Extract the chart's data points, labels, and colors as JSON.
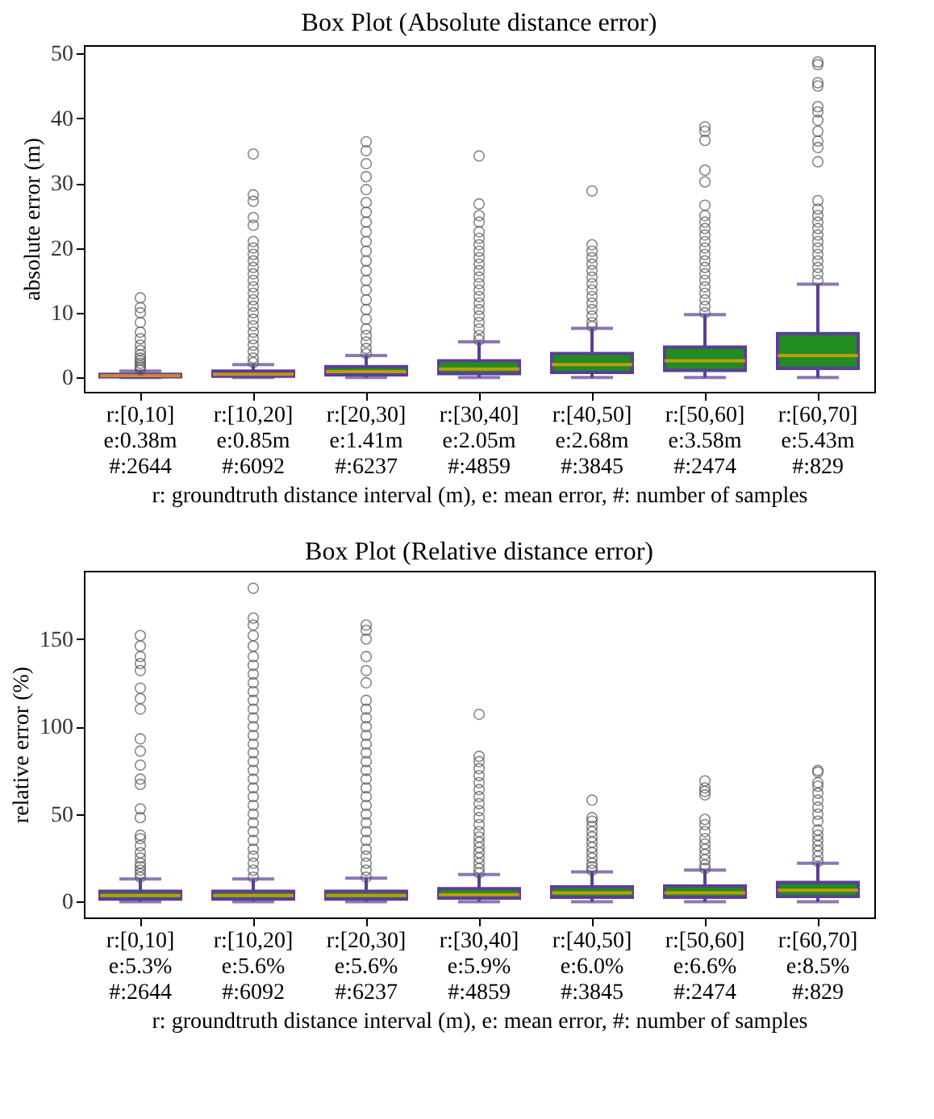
{
  "chart_data": [
    {
      "type": "box",
      "title": "Box Plot (Absolute distance error)",
      "ylabel": "absolute error (m)",
      "xlabel": "r: groundtruth distance interval (m), e: mean error, #: number of samples",
      "categories": [
        "r:[0,10]\ne:0.38m\n#:2644",
        "r:[10,20]\ne:0.85m\n#:6092",
        "r:[20,30]\ne:1.41m\n#:6237",
        "r:[30,40]\ne:2.05m\n#:4859",
        "r:[40,50]\ne:2.68m\n#:3845",
        "r:[50,60]\ne:3.58m\n#:2474",
        "r:[60,70]\ne:5.43m\n#:829"
      ],
      "color": "#228b22",
      "ylim": [
        -2.2,
        51.3
      ],
      "yticks": [
        0,
        10,
        20,
        30,
        40,
        50
      ],
      "boxes": [
        {
          "low": 0,
          "q1": 0.1,
          "median": 0.3,
          "q3": 0.5,
          "high": 1.0,
          "outliers": [
            1.2,
            1.5,
            1.8,
            2.2,
            2.6,
            3.0,
            3.5,
            4.2,
            5.0,
            6.0,
            7.0,
            8.5,
            10.0,
            10.8,
            12.3
          ]
        },
        {
          "low": 0,
          "q1": 0.2,
          "median": 0.5,
          "q3": 1.0,
          "high": 2.0,
          "outliers": [
            2.3,
            3,
            4,
            5,
            6,
            7,
            8,
            9,
            10,
            11,
            12,
            13,
            14,
            15,
            16,
            17,
            18,
            19,
            20,
            21,
            23.5,
            24.7,
            27.2,
            28.2,
            34.5
          ]
        },
        {
          "low": 0,
          "q1": 0.4,
          "median": 0.9,
          "q3": 1.7,
          "high": 3.4,
          "outliers": [
            3.7,
            4.5,
            5.5,
            6.5,
            7.5,
            9,
            10.5,
            12,
            13.5,
            15,
            16.5,
            18,
            19.5,
            21,
            22.5,
            24,
            25.5,
            27,
            29,
            31,
            33,
            35,
            36.4
          ]
        },
        {
          "low": 0,
          "q1": 0.6,
          "median": 1.3,
          "q3": 2.6,
          "high": 5.5,
          "outliers": [
            5.8,
            6.5,
            7.5,
            8.5,
            9.5,
            10.5,
            11.5,
            12.5,
            13.5,
            14.5,
            15.5,
            16.5,
            17.5,
            18.5,
            19.5,
            20.5,
            21.5,
            22.5,
            24,
            25,
            26.8,
            34.2
          ]
        },
        {
          "low": 0,
          "q1": 0.8,
          "median": 2.0,
          "q3": 3.7,
          "high": 7.6,
          "outliers": [
            7.9,
            8.5,
            9.5,
            10.5,
            11.5,
            12.5,
            13.5,
            14.5,
            15.5,
            16.5,
            17.5,
            18.5,
            19.5,
            20.5,
            28.8
          ]
        },
        {
          "low": 0,
          "q1": 1.1,
          "median": 2.6,
          "q3": 4.7,
          "high": 9.7,
          "outliers": [
            10,
            11,
            12,
            13,
            14,
            15,
            16,
            17,
            18,
            19,
            20,
            21,
            22,
            23,
            24,
            25,
            26.6,
            30.2,
            32,
            36.6,
            38,
            38.7
          ]
        },
        {
          "low": 0,
          "q1": 1.4,
          "median": 3.4,
          "q3": 6.8,
          "high": 14.4,
          "outliers": [
            15,
            16,
            17,
            18,
            19,
            20,
            21,
            22,
            23,
            24,
            25,
            26,
            27.3,
            33.3,
            35.5,
            36.5,
            38,
            39.7,
            41,
            41.8,
            45,
            45.5,
            48.3,
            48.7
          ]
        }
      ]
    },
    {
      "type": "box",
      "title": "Box Plot (Relative distance error)",
      "ylabel": "relative error (%)",
      "xlabel": "r: groundtruth distance interval (m), e: mean error, #: number of samples",
      "categories": [
        "r:[0,10]\ne:5.3%\n#:2644",
        "r:[10,20]\ne:5.6%\n#:6092",
        "r:[20,30]\ne:5.6%\n#:6237",
        "r:[30,40]\ne:5.9%\n#:4859",
        "r:[40,50]\ne:6.0%\n#:3845",
        "r:[50,60]\ne:6.6%\n#:2474",
        "r:[60,70]\ne:8.5%\n#:829"
      ],
      "color": "#228b22",
      "ylim": [
        -9,
        189
      ],
      "yticks": [
        0,
        50,
        100,
        150
      ],
      "boxes": [
        {
          "low": 0,
          "q1": 1.5,
          "median": 3.5,
          "q3": 6,
          "high": 13,
          "outliers": [
            14,
            16,
            18,
            20,
            22,
            25,
            28,
            32,
            36,
            38,
            48,
            53,
            67,
            70,
            78,
            86,
            93,
            110,
            116,
            122,
            132,
            136,
            140,
            146,
            152
          ]
        },
        {
          "low": 0,
          "q1": 1.5,
          "median": 3.5,
          "q3": 6,
          "high": 13,
          "outliers": [
            14,
            18,
            22,
            26,
            30,
            35,
            40,
            45,
            50,
            55,
            60,
            65,
            70,
            75,
            80,
            85,
            90,
            95,
            100,
            105,
            110,
            115,
            120,
            125,
            130,
            135,
            140,
            146,
            152,
            158,
            162,
            179
          ]
        },
        {
          "low": 0,
          "q1": 1.5,
          "median": 3.5,
          "q3": 6,
          "high": 13.5,
          "outliers": [
            14,
            18,
            22,
            26,
            30,
            35,
            40,
            45,
            50,
            55,
            60,
            65,
            70,
            75,
            80,
            85,
            90,
            95,
            100,
            105,
            110,
            115,
            125,
            132,
            140,
            150,
            155,
            158
          ]
        },
        {
          "low": 0,
          "q1": 2,
          "median": 4,
          "q3": 7.5,
          "high": 15.5,
          "outliers": [
            16.5,
            19,
            22,
            25,
            28,
            31,
            34,
            37,
            40,
            44,
            48,
            52,
            56,
            60,
            64,
            68,
            72,
            76,
            80,
            83,
            107
          ]
        },
        {
          "low": 0,
          "q1": 2.5,
          "median": 5,
          "q3": 8.5,
          "high": 17,
          "outliers": [
            18,
            20,
            22,
            25,
            28,
            31,
            34,
            37,
            40,
            43,
            46,
            48,
            58
          ]
        },
        {
          "low": 0,
          "q1": 2.5,
          "median": 5,
          "q3": 9,
          "high": 18,
          "outliers": [
            19,
            21,
            24,
            27,
            30,
            33,
            36,
            40,
            44,
            47,
            61,
            63,
            65,
            69
          ]
        },
        {
          "low": 0,
          "q1": 3,
          "median": 6.5,
          "q3": 11,
          "high": 22,
          "outliers": [
            23,
            26,
            29,
            32,
            35,
            38,
            41,
            46,
            50,
            54,
            58,
            62,
            66,
            68,
            74,
            75
          ]
        }
      ]
    }
  ]
}
